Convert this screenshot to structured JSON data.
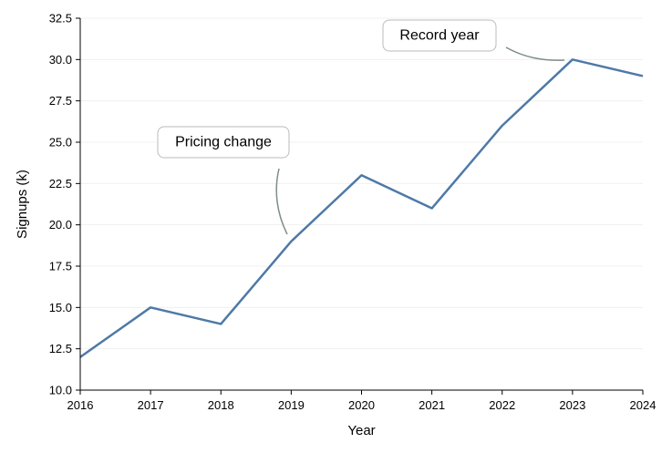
{
  "chart_data": {
    "type": "line",
    "title": "",
    "xlabel": "Year",
    "ylabel": "Signups (k)",
    "x": [
      2016,
      2017,
      2018,
      2019,
      2020,
      2021,
      2022,
      2023,
      2024
    ],
    "series": [
      {
        "values": [
          12,
          15,
          14,
          19,
          23,
          21,
          26,
          30,
          29
        ],
        "color": "#4e79a7"
      }
    ],
    "xlim": [
      2016,
      2024
    ],
    "ylim": [
      10,
      32.5
    ],
    "x_ticks": [
      "2016",
      "2017",
      "2018",
      "2019",
      "2020",
      "2021",
      "2022",
      "2023",
      "2024"
    ],
    "y_ticks": [
      "10.0",
      "12.5",
      "15.0",
      "17.5",
      "20.0",
      "22.5",
      "25.0",
      "27.5",
      "30.0",
      "32.5"
    ],
    "grid": "horizontal",
    "annotations": [
      {
        "text": "Pricing change",
        "target_x": 2019,
        "target_y": 19
      },
      {
        "text": "Record year",
        "target_x": 2023,
        "target_y": 30
      }
    ]
  },
  "colors": {
    "line": "#4e79a7",
    "annotation_arrow": "#7f8c8d",
    "annotation_border": "#bbbbbb",
    "grid": "#eeeeee",
    "axis": "#000000"
  }
}
